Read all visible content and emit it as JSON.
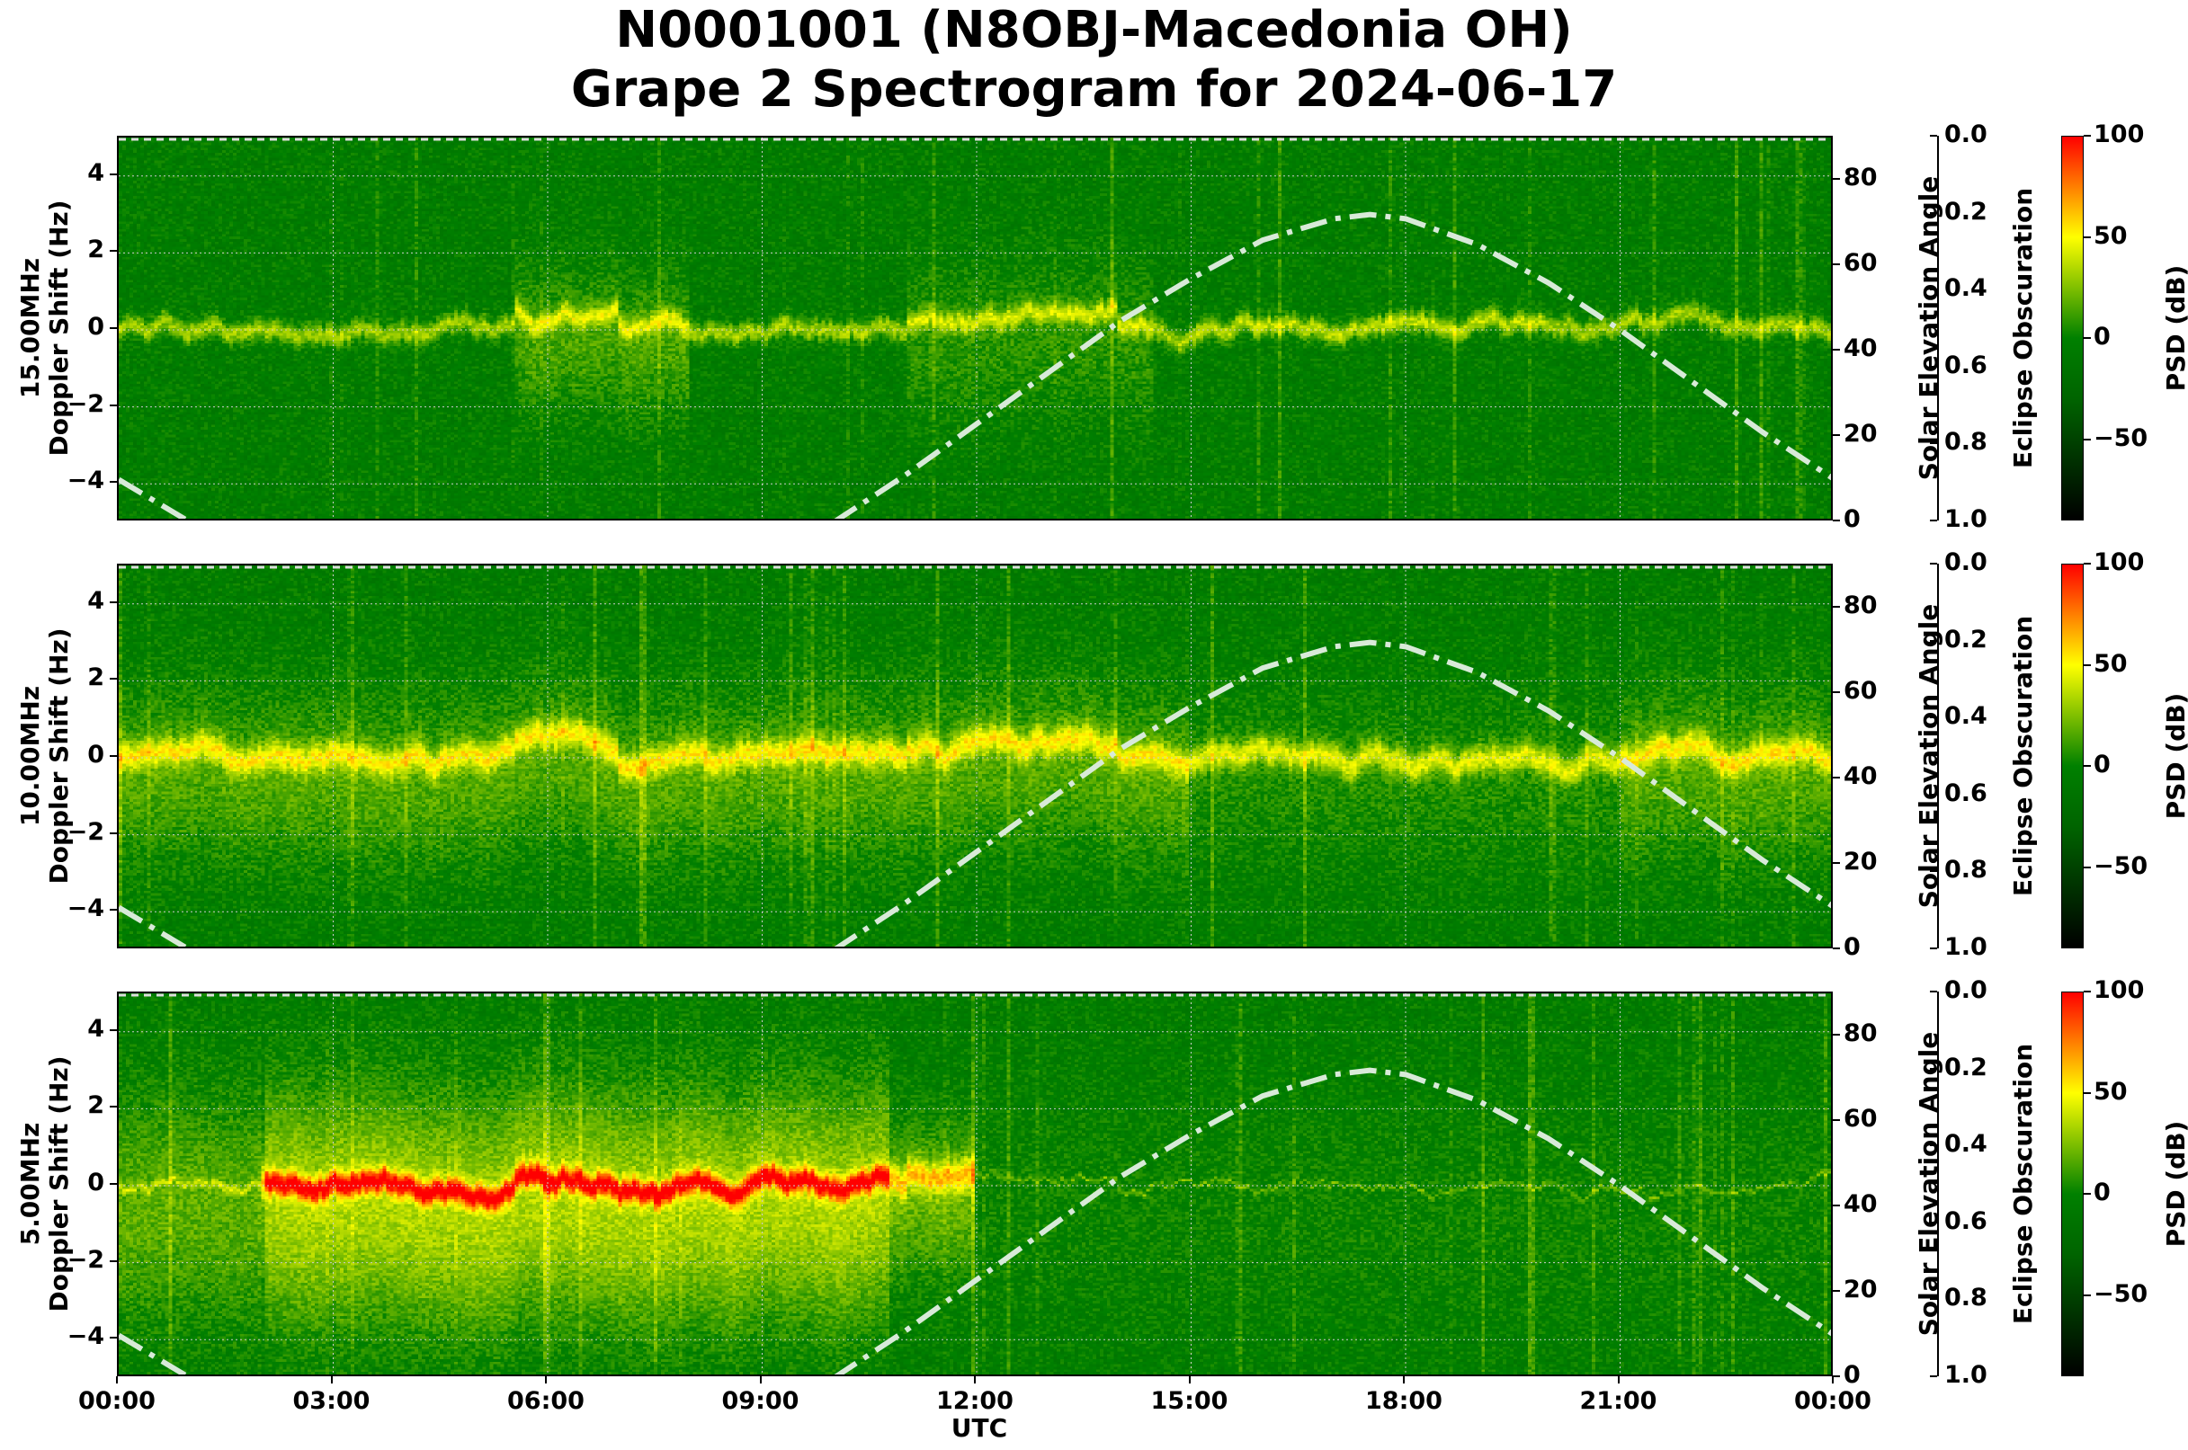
{
  "title": {
    "line1": "N0001001 (N8OBJ-Macedonia OH)",
    "line2": "Grape 2 Spectrogram for 2024-06-17"
  },
  "chart_data": {
    "type": "heatmap",
    "x_label": "UTC",
    "x_ticks": [
      "00:00",
      "03:00",
      "06:00",
      "09:00",
      "12:00",
      "15:00",
      "18:00",
      "21:00",
      "00:00"
    ],
    "x_range_hours": [
      0,
      24
    ],
    "y_label_suffix": "Doppler Shift (Hz)",
    "y_range": [
      -5,
      5
    ],
    "y_ticks": [
      "4",
      "2",
      "0",
      "−2",
      "−4"
    ],
    "secondary_axis": {
      "label": "Solar Elevation Angle",
      "range": [
        0,
        90
      ],
      "ticks": [
        "80",
        "60",
        "40",
        "20",
        "0"
      ],
      "line_style": "dash-dot",
      "line_color": "#d8ead8",
      "solar_elevation": {
        "hours": [
          0,
          0.5,
          1,
          10,
          11,
          12,
          13,
          14,
          15,
          16,
          17,
          17.5,
          18,
          19,
          20,
          21,
          22,
          23,
          24
        ],
        "degrees": [
          10,
          5,
          0,
          0,
          11,
          23,
          35,
          47,
          57,
          66,
          71,
          72,
          71,
          65,
          56,
          45,
          33,
          21,
          10
        ]
      }
    },
    "eclipse_axis": {
      "label": "Eclipse Obscuration",
      "range": [
        0.0,
        1.0
      ],
      "ticks": [
        "0.0",
        "0.2",
        "0.4",
        "0.6",
        "0.8",
        "1.0"
      ]
    },
    "colorbar": {
      "label": "PSD (dB)",
      "range": [
        -90,
        100
      ],
      "ticks": [
        "100",
        "50",
        "0",
        "−50"
      ],
      "colors": {
        "low": "#000000",
        "mid": "#008000",
        "high_mid": "#ffff00",
        "high": "#ff0000"
      }
    },
    "panels": [
      {
        "frequency_label": "15.00MHz",
        "dominant_level_db": 40
      },
      {
        "frequency_label": "10.00MHz",
        "dominant_level_db": 45
      },
      {
        "frequency_label": "5.00MHz",
        "dominant_level_db": 80
      }
    ],
    "grid": true
  }
}
